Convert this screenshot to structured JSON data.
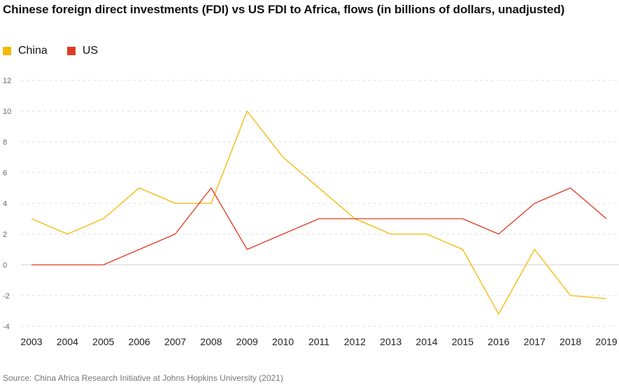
{
  "chart_data": {
    "type": "line",
    "title": "Chinese foreign direct investments (FDI) vs US FDI to Africa, flows (in billions of dollars, unadjusted)",
    "source": "Source: China Africa Research Initiative at Johns Hopkins University (2021)",
    "categories": [
      "2003",
      "2004",
      "2005",
      "2006",
      "2007",
      "2008",
      "2009",
      "2010",
      "2011",
      "2012",
      "2013",
      "2014",
      "2015",
      "2016",
      "2017",
      "2018",
      "2019"
    ],
    "series": [
      {
        "name": "China",
        "color": "#F5B800",
        "values": [
          3,
          2,
          3,
          5,
          4,
          4,
          10,
          7,
          5,
          3,
          2,
          2,
          1,
          -3.2,
          1,
          -2,
          -2.2
        ]
      },
      {
        "name": "US",
        "color": "#E03A22",
        "values": [
          0,
          0,
          0,
          1,
          2,
          5,
          1,
          2,
          3,
          3,
          3,
          3,
          3,
          2,
          4,
          5,
          3
        ]
      }
    ],
    "yticks": [
      12,
      10,
      8,
      6,
      4,
      2,
      0,
      -2,
      -4
    ],
    "ylim": [
      -4,
      12
    ],
    "grid": true,
    "legend": "top-left"
  }
}
